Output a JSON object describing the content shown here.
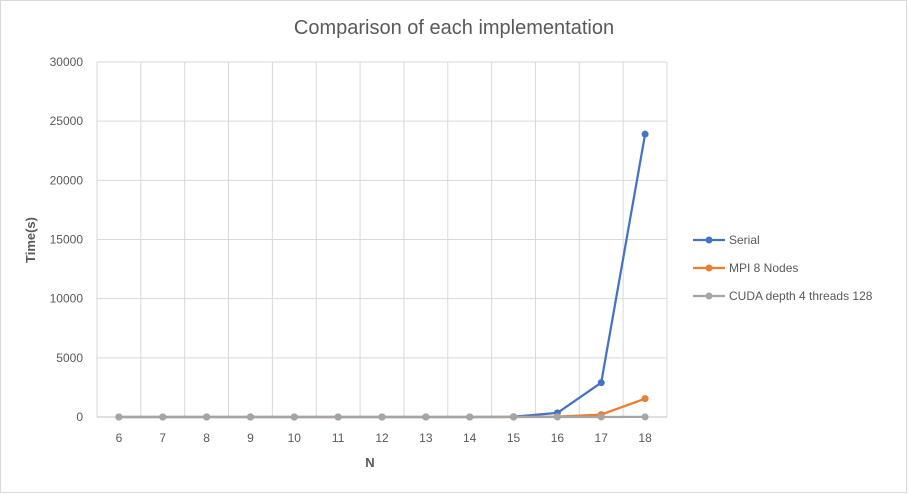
{
  "chart_data": {
    "type": "line",
    "title": "Comparison of each implementation",
    "xlabel": "N",
    "ylabel": "Time(s)",
    "x": [
      6,
      7,
      8,
      9,
      10,
      11,
      12,
      13,
      14,
      15,
      16,
      17,
      18
    ],
    "ylim": [
      0,
      30000
    ],
    "yticks": [
      0,
      5000,
      10000,
      15000,
      20000,
      25000,
      30000
    ],
    "grid": true,
    "legend_position": "right",
    "series": [
      {
        "name": "Serial",
        "color": "#4472c4",
        "values": [
          0,
          0,
          0,
          0,
          0,
          0,
          0,
          0,
          0,
          20,
          350,
          2900,
          23900
        ]
      },
      {
        "name": "MPI 8 Nodes",
        "color": "#ed7d31",
        "values": [
          0,
          0,
          0,
          0,
          0,
          0,
          0,
          0,
          0,
          0,
          30,
          200,
          1550
        ]
      },
      {
        "name": "CUDA depth 4 threads 128",
        "color": "#a5a5a5",
        "values": [
          0,
          0,
          0,
          0,
          0,
          0,
          0,
          0,
          0,
          0,
          0,
          0,
          10
        ]
      }
    ]
  }
}
